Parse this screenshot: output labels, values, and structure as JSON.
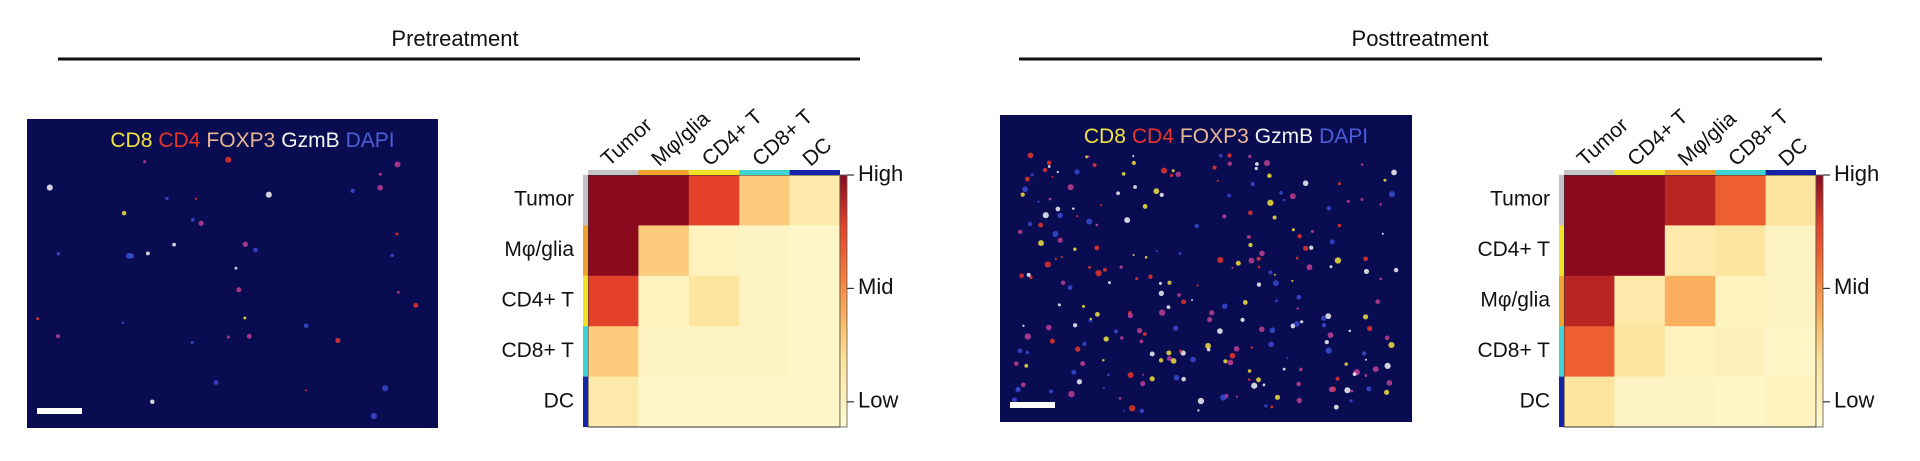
{
  "chart_data": [
    {
      "type": "heatmap",
      "title": "Pretreatment",
      "channels": [
        {
          "name": "CD8",
          "color": "#f2e33c"
        },
        {
          "name": "CD4",
          "color": "#e8352c"
        },
        {
          "name": "FOXP3",
          "color": "#e8b890"
        },
        {
          "name": "GzmB",
          "color": "#f4f4f4"
        },
        {
          "name": "DAPI",
          "color": "#4a5ed8"
        }
      ],
      "categories": [
        "Tumor",
        "Mφ/glia",
        "CD4+ T",
        "CD8+ T",
        "DC"
      ],
      "category_colors": [
        "#c4c4c4",
        "#f2a22c",
        "#f0e226",
        "#3fd3d3",
        "#1424a8"
      ],
      "values": [
        [
          1,
          1,
          0.8,
          0.35,
          0.2
        ],
        [
          1,
          0.35,
          0.1,
          0.08,
          0.05
        ],
        [
          0.8,
          0.1,
          0.25,
          0.08,
          0.05
        ],
        [
          0.35,
          0.08,
          0.08,
          0.08,
          0.05
        ],
        [
          0.2,
          0.05,
          0.05,
          0.05,
          0.05
        ]
      ],
      "zlim": [
        0,
        1
      ],
      "zticks": [
        {
          "value": 1,
          "label": "High"
        },
        {
          "value": 0.55,
          "label": "Mid"
        },
        {
          "value": 0.1,
          "label": "Low"
        }
      ]
    },
    {
      "type": "heatmap",
      "title": "Posttreatment",
      "channels": [
        {
          "name": "CD8",
          "color": "#f2e33c"
        },
        {
          "name": "CD4",
          "color": "#e8352c"
        },
        {
          "name": "FOXP3",
          "color": "#e8b890"
        },
        {
          "name": "GzmB",
          "color": "#f4f4f4"
        },
        {
          "name": "DAPI",
          "color": "#4a5ed8"
        }
      ],
      "categories": [
        "Tumor",
        "CD4+ T",
        "Mφ/glia",
        "CD8+ T",
        "DC"
      ],
      "category_colors": [
        "#c4c4c4",
        "#f0e226",
        "#f2a22c",
        "#3fd3d3",
        "#1424a8"
      ],
      "values": [
        [
          1,
          1,
          0.9,
          0.7,
          0.25
        ],
        [
          1,
          1,
          0.2,
          0.25,
          0.08
        ],
        [
          0.9,
          0.2,
          0.45,
          0.1,
          0.08
        ],
        [
          0.7,
          0.25,
          0.1,
          0.12,
          0.06
        ],
        [
          0.25,
          0.08,
          0.08,
          0.06,
          0.1
        ]
      ],
      "zlim": [
        0,
        1
      ],
      "zticks": [
        {
          "value": 1,
          "label": "High"
        },
        {
          "value": 0.55,
          "label": "Mid"
        },
        {
          "value": 0.1,
          "label": "Low"
        }
      ]
    }
  ]
}
